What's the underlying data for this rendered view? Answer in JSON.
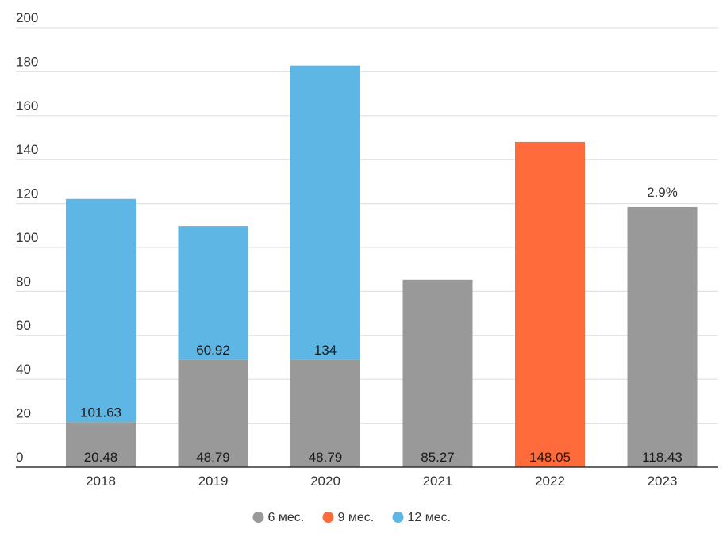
{
  "chart_data": {
    "type": "bar",
    "stacked": true,
    "title": "",
    "xlabel": "",
    "ylabel": "",
    "ylim": [
      0,
      200
    ],
    "yticks": [
      0,
      20,
      40,
      60,
      80,
      100,
      120,
      140,
      160,
      180,
      200
    ],
    "grid": true,
    "legend_position": "bottom",
    "categories": [
      "2018",
      "2019",
      "2020",
      "2021",
      "2022",
      "2023"
    ],
    "series": [
      {
        "name": "6 мес.",
        "color": "#999999",
        "values": [
          20.48,
          48.79,
          48.79,
          85.27,
          null,
          118.43
        ],
        "labels": [
          "20.48",
          "48.79",
          "48.79",
          "85.27",
          "",
          "118.43"
        ]
      },
      {
        "name": "9 мес.",
        "color": "#ff6b3a",
        "values": [
          null,
          null,
          null,
          null,
          148.05,
          null
        ],
        "labels": [
          "",
          "",
          "",
          "",
          "148.05",
          ""
        ]
      },
      {
        "name": "12 мес.",
        "color": "#5eb6e4",
        "values": [
          101.63,
          60.92,
          134,
          null,
          null,
          null
        ],
        "labels": [
          "101.63",
          "60.92",
          "134",
          "",
          "",
          ""
        ]
      }
    ],
    "annotations": [
      {
        "category": "2023",
        "text": "2.9%"
      }
    ]
  }
}
